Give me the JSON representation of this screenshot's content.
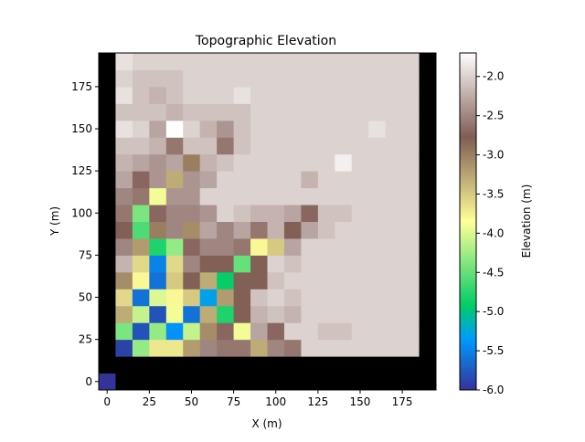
{
  "chart_data": {
    "type": "heatmap",
    "title": "Topographic Elevation",
    "xlabel": "X (m)",
    "ylabel": "Y (m)",
    "colorbar_label": "Elevation (m)",
    "colormap": "terrain",
    "xlim": [
      -5,
      195
    ],
    "ylim": [
      -5,
      195
    ],
    "cell_size_m": 10,
    "x_ticks": [
      0,
      25,
      50,
      75,
      100,
      125,
      150,
      175
    ],
    "y_ticks": [
      0,
      25,
      50,
      75,
      100,
      125,
      150,
      175
    ],
    "colorbar_range": [
      -6.0,
      -1.7
    ],
    "colorbar_ticks": [
      "-6.0",
      "-5.5",
      "-5.0",
      "-4.5",
      "-4.0",
      "-3.5",
      "-3.0",
      "-2.5",
      "-2.0"
    ],
    "grid": false,
    "note_cells": "z[j][i] = elevation (m) of the cell centered at x = i*10, y = j*10; j=0 is the bottom row.",
    "z": [
      [
        -5.9,
        -5.8,
        -5.8,
        -5.8,
        -5.8,
        -5.8,
        -5.8,
        -5.8,
        -5.8,
        -5.8,
        -5.8,
        -5.8,
        -5.8,
        -5.8,
        -5.8,
        -5.8,
        -5.8,
        -5.8,
        -5.8,
        -5.8
      ],
      [
        -5.8,
        -5.8,
        -5.8,
        -5.8,
        -5.8,
        -5.8,
        -5.8,
        -5.8,
        -5.8,
        -5.8,
        -5.8,
        -5.8,
        -5.8,
        -5.8,
        -5.8,
        -5.8,
        -5.8,
        -5.8,
        -5.8,
        -5.8
      ],
      [
        -5.8,
        -5.9,
        -4.3,
        -3.7,
        -3.7,
        -3.2,
        -2.5,
        -2.6,
        -2.6,
        -3.3,
        -2.5,
        -2.6,
        -2.0,
        -2.0,
        -2.0,
        -2.0,
        -2.0,
        -2.0,
        -2.0,
        -5.8
      ],
      [
        -5.8,
        -4.4,
        -5.8,
        -4.3,
        -5.4,
        -4.1,
        -3.1,
        -2.7,
        -3.9,
        -2.3,
        -2.7,
        -2.0,
        -2.0,
        -2.1,
        -2.1,
        -2.0,
        -2.0,
        -2.0,
        -2.0,
        -5.8
      ],
      [
        -5.8,
        -3.3,
        -4.1,
        -5.8,
        -3.9,
        -5.6,
        -3.3,
        -4.8,
        -2.8,
        -2.2,
        -2.1,
        -2.2,
        -2.0,
        -2.0,
        -2.0,
        -2.0,
        -2.0,
        -2.0,
        -2.0,
        -5.8
      ],
      [
        -5.8,
        -3.6,
        -5.6,
        -4.0,
        -3.8,
        -3.5,
        -5.3,
        -3.2,
        -2.8,
        -2.1,
        -2.0,
        -2.1,
        -2.0,
        -2.0,
        -2.0,
        -2.0,
        -2.0,
        -2.0,
        -2.0,
        -5.8
      ],
      [
        -5.8,
        -3.1,
        -3.8,
        -5.6,
        -3.5,
        -2.8,
        -3.3,
        -4.9,
        -2.8,
        -2.8,
        -2.1,
        -2.0,
        -2.0,
        -2.0,
        -2.0,
        -2.0,
        -2.0,
        -2.0,
        -2.0,
        -5.8
      ],
      [
        -5.8,
        -2.2,
        -3.6,
        -5.5,
        -3.6,
        -2.5,
        -2.8,
        -2.8,
        -4.5,
        -2.8,
        -2.0,
        -2.1,
        -2.0,
        -2.0,
        -2.0,
        -2.0,
        -2.0,
        -2.0,
        -2.0,
        -5.8
      ],
      [
        -5.8,
        -2.5,
        -3.2,
        -4.8,
        -4.3,
        -2.7,
        -2.5,
        -2.5,
        -2.6,
        -3.8,
        -3.5,
        -2.3,
        -2.0,
        -2.0,
        -2.0,
        -2.0,
        -2.0,
        -2.0,
        -2.0,
        -5.8
      ],
      [
        -5.8,
        -2.8,
        -4.6,
        -3.0,
        -2.5,
        -3.1,
        -2.3,
        -2.5,
        -2.3,
        -2.6,
        -2.2,
        -2.8,
        -2.3,
        -2.1,
        -2.0,
        -2.0,
        -2.0,
        -2.0,
        -2.0,
        -5.8
      ],
      [
        -5.8,
        -2.6,
        -4.4,
        -2.7,
        -2.5,
        -2.5,
        -2.4,
        -2.0,
        -2.1,
        -2.2,
        -2.2,
        -2.3,
        -2.7,
        -2.1,
        -2.1,
        -2.0,
        -2.0,
        -2.0,
        -2.0,
        -5.8
      ],
      [
        -5.8,
        -2.5,
        -2.6,
        -3.9,
        -2.4,
        -2.4,
        -2.0,
        -2.0,
        -2.0,
        -2.0,
        -2.0,
        -2.0,
        -2.0,
        -2.0,
        -2.0,
        -2.0,
        -2.0,
        -2.0,
        -2.0,
        -5.8
      ],
      [
        -5.8,
        -2.3,
        -2.7,
        -2.4,
        -3.3,
        -2.4,
        -2.3,
        -2.0,
        -2.0,
        -2.0,
        -2.0,
        -2.0,
        -2.2,
        -2.0,
        -2.0,
        -2.0,
        -2.0,
        -2.0,
        -2.0,
        -5.8
      ],
      [
        -5.8,
        -2.2,
        -2.3,
        -2.4,
        -2.3,
        -3.0,
        -2.2,
        -2.1,
        -2.0,
        -2.0,
        -2.0,
        -2.0,
        -2.0,
        -2.0,
        -1.8,
        -2.0,
        -2.0,
        -2.0,
        -2.0,
        -5.8
      ],
      [
        -5.8,
        -2.1,
        -2.1,
        -2.2,
        -2.6,
        -2.1,
        -2.1,
        -2.6,
        -2.1,
        -2.0,
        -2.0,
        -2.0,
        -2.0,
        -2.0,
        -2.0,
        -2.0,
        -2.0,
        -2.0,
        -2.0,
        -5.8
      ],
      [
        -5.8,
        -1.9,
        -2.0,
        -2.3,
        -1.7,
        -2.0,
        -2.2,
        -2.4,
        -2.1,
        -2.0,
        -2.0,
        -2.0,
        -2.0,
        -2.0,
        -2.0,
        -2.0,
        -1.9,
        -2.0,
        -2.0,
        -5.8
      ],
      [
        -5.8,
        -2.1,
        -2.1,
        -2.1,
        -2.2,
        -2.1,
        -2.1,
        -2.1,
        -2.1,
        -2.0,
        -2.0,
        -2.0,
        -2.0,
        -2.0,
        -2.0,
        -2.0,
        -2.0,
        -2.0,
        -2.0,
        -5.8
      ],
      [
        -5.8,
        -1.9,
        -2.1,
        -2.2,
        -2.1,
        -2.0,
        -2.0,
        -2.0,
        -1.9,
        -2.0,
        -2.0,
        -2.0,
        -2.0,
        -2.0,
        -2.0,
        -2.0,
        -2.0,
        -2.0,
        -2.0,
        -5.8
      ],
      [
        -5.8,
        -2.0,
        -2.1,
        -2.1,
        -2.1,
        -2.0,
        -2.0,
        -2.0,
        -2.0,
        -2.0,
        -2.0,
        -2.0,
        -2.0,
        -2.0,
        -2.0,
        -2.0,
        -2.0,
        -2.0,
        -2.0,
        -5.8
      ],
      [
        -5.8,
        -1.9,
        -2.0,
        -2.0,
        -2.0,
        -2.0,
        -2.0,
        -2.0,
        -2.0,
        -2.0,
        -2.0,
        -2.0,
        -2.0,
        -2.0,
        -2.0,
        -2.0,
        -2.0,
        -2.0,
        -2.0,
        -5.8
      ]
    ],
    "black_cells": "frame cells (row 0, row 1, column 19, and column 0 for rows 2-19) are rendered black; cell (0,0) is the lowest value"
  }
}
